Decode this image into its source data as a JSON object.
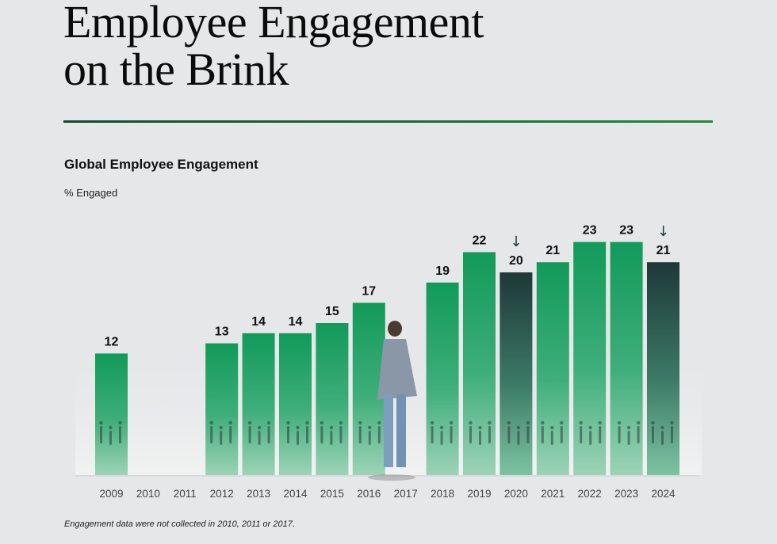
{
  "header": {
    "title_line1": "Employee Engagement",
    "title_line2": "on the Brink"
  },
  "colors": {
    "background": "#e6e7e8",
    "bar_green_top": "#129a5a",
    "bar_green_bottom": "#8fcfae",
    "bar_dark_top": "#1e3b3b",
    "bar_dark_bottom": "#4f9c7c",
    "divider": "#176a35",
    "arrow": "#1e3b3b"
  },
  "chart_data": {
    "type": "bar",
    "title": "Global Employee Engagement",
    "ylabel": "% Engaged",
    "xlabel": "",
    "categories": [
      "2009",
      "2010",
      "2011",
      "2012",
      "2013",
      "2014",
      "2015",
      "2016",
      "2017",
      "2018",
      "2019",
      "2020",
      "2021",
      "2022",
      "2023",
      "2024"
    ],
    "values": [
      12,
      null,
      null,
      13,
      14,
      14,
      15,
      17,
      null,
      19,
      22,
      20,
      21,
      23,
      23,
      21
    ],
    "declines": [
      "2020",
      "2024"
    ],
    "decline_marker": "↓",
    "ylim": [
      0,
      24
    ],
    "grid": false,
    "legend": "none",
    "footnote": "Engagement data were not collected in 2010, 2011 or 2017."
  }
}
